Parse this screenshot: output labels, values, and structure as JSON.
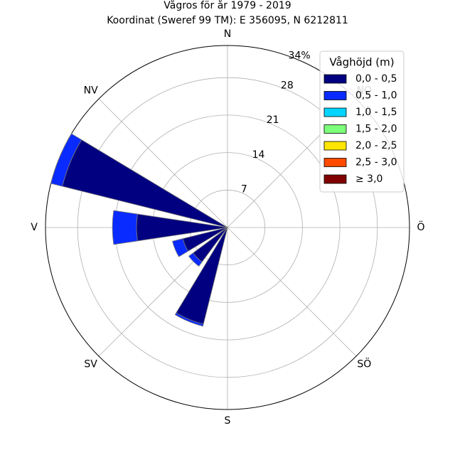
{
  "chart_data": {
    "type": "polar-bar",
    "title_line1": "Vågros för år 1979 - 2019",
    "title_line2": "Koordinat (Sweref 99 TM): E 356095, N 6212811",
    "direction_labels": [
      "N",
      "NO",
      "Ö",
      "SÖ",
      "S",
      "SV",
      "V",
      "NV"
    ],
    "radial_ticks": [
      "7",
      "14",
      "21",
      "28",
      "34%"
    ],
    "rmax": 34,
    "legend_title": "Våghöjd (m)",
    "legend_placement": "top-right",
    "bins": [
      {
        "label": "0,0 - 0,5",
        "color": "#000080"
      },
      {
        "label": "0,5 - 1,0",
        "color": "#0a2bff"
      },
      {
        "label": "1,0 - 1,5",
        "color": "#00d4ff"
      },
      {
        "label": "1,5 - 2,0",
        "color": "#7cff79"
      },
      {
        "label": "2,0 - 2,5",
        "color": "#ffe600"
      },
      {
        "label": "2,5 - 3,0",
        "color": "#ff4a00"
      },
      {
        "label": "≥ 3,0",
        "color": "#800000"
      }
    ],
    "sectors": [
      {
        "direction_deg": 202.5,
        "stacks": [
          18.6,
          0.4
        ]
      },
      {
        "direction_deg": 225,
        "stacks": [
          8.0,
          1.0
        ]
      },
      {
        "direction_deg": 247.5,
        "stacks": [
          8.6,
          2.0
        ]
      },
      {
        "direction_deg": 270,
        "stacks": [
          17.0,
          4.5
        ]
      },
      {
        "direction_deg": 292.5,
        "stacks": [
          31.8,
          2.2
        ]
      }
    ]
  }
}
